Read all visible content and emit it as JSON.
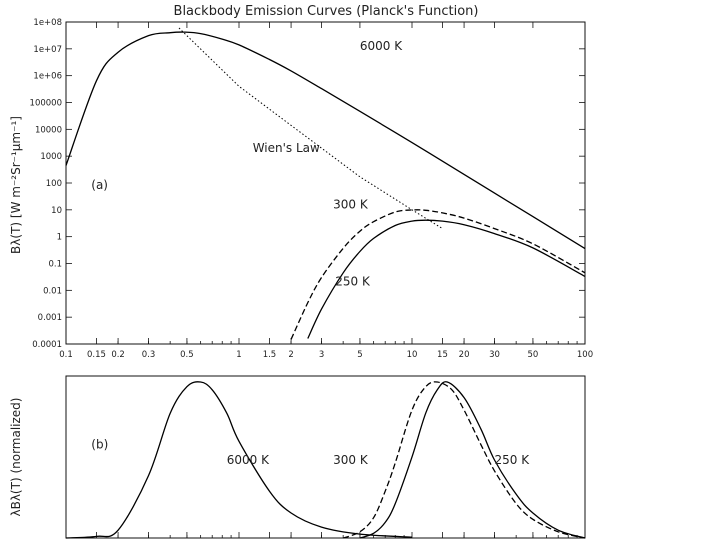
{
  "chart_data": [
    {
      "type": "line",
      "panel_label": "(a)",
      "title": "Blackbody Emission Curves (Planck's Function)",
      "ylabel": "Bλ(T) [W m⁻²Sr⁻¹µm⁻¹]",
      "xlabel": "",
      "xscale": "log",
      "yscale": "log",
      "xlim": [
        0.1,
        100
      ],
      "ylim": [
        0.0001,
        100000000
      ],
      "x_ticks": [
        "0.1",
        "0.15",
        "0.2",
        "0.3",
        "0.5",
        "1",
        "1.5",
        "2",
        "3",
        "5",
        "10",
        "15",
        "20",
        "30",
        "50",
        "100"
      ],
      "x_tick_values": [
        0.1,
        0.15,
        0.2,
        0.3,
        0.5,
        1,
        1.5,
        2,
        3,
        5,
        10,
        15,
        20,
        30,
        50,
        100
      ],
      "y_ticks": [
        "0.0001",
        "0.001",
        "0.01",
        "0.1",
        "1",
        "10",
        "100",
        "1000",
        "10000",
        "100000",
        "1e+06",
        "1e+07",
        "1e+08"
      ],
      "y_tick_values": [
        0.0001,
        0.001,
        0.01,
        0.1,
        1,
        10,
        100,
        1000,
        10000,
        100000,
        1000000,
        10000000,
        100000000
      ],
      "grid": false,
      "series": [
        {
          "name": "6000 K",
          "style": "solid",
          "x": [
            0.1,
            0.15,
            0.2,
            0.3,
            0.4,
            0.48,
            0.6,
            0.8,
            1,
            1.5,
            2,
            3,
            5,
            10,
            20,
            30,
            50,
            100
          ],
          "y": [
            450,
            650000,
            7500000,
            31000000,
            40000000,
            42000000,
            37000000,
            23000000,
            14000000,
            4000000,
            1500000,
            330000,
            47000,
            3200,
            210,
            42,
            5.6,
            0.36
          ]
        },
        {
          "name": "300 K",
          "style": "dashed",
          "x": [
            2,
            2.5,
            3,
            4,
            5,
            6,
            8,
            10,
            12,
            15,
            20,
            30,
            50,
            100
          ],
          "y": [
            0.00015,
            0.0035,
            0.03,
            0.37,
            1.6,
            3.6,
            8.3,
            9.9,
            9.6,
            7.7,
            4.9,
            2.0,
            0.54,
            0.045
          ]
        },
        {
          "name": "250 K",
          "style": "solid",
          "x": [
            2.5,
            3,
            4,
            5,
            6,
            8,
            10,
            12,
            15,
            20,
            30,
            50,
            100
          ],
          "y": [
            0.00016,
            0.002,
            0.045,
            0.28,
            0.86,
            2.6,
            3.8,
            4.1,
            3.8,
            2.8,
            1.3,
            0.38,
            0.033
          ]
        },
        {
          "name": "Wien's Law",
          "style": "dotted",
          "x": [
            0.45,
            1,
            2,
            5,
            10,
            15
          ],
          "y": [
            60000000,
            400000,
            14000,
            170,
            10,
            2
          ]
        }
      ],
      "annotations": [
        {
          "text": "6000 K",
          "x": 5.0,
          "y": 9000000
        },
        {
          "text": "Wien's Law",
          "x": 1.2,
          "y": 1400
        },
        {
          "text": "300 K",
          "x": 3.5,
          "y": 11
        },
        {
          "text": "250 K",
          "x": 3.6,
          "y": 0.015
        },
        {
          "text": "(a)",
          "x": 0.14,
          "y": 60
        }
      ]
    },
    {
      "type": "line",
      "panel_label": "(b)",
      "ylabel": "λBλ(T) (normalized)",
      "xscale": "log",
      "xlim": [
        0.1,
        100
      ],
      "ylim": [
        0,
        1
      ],
      "series": [
        {
          "name": "6000 K",
          "style": "solid",
          "x": [
            0.1,
            0.15,
            0.2,
            0.3,
            0.4,
            0.5,
            0.6,
            0.7,
            0.85,
            1,
            1.5,
            2,
            3,
            5,
            10
          ],
          "y": [
            0.0,
            0.01,
            0.05,
            0.4,
            0.8,
            0.97,
            1.0,
            0.95,
            0.8,
            0.62,
            0.3,
            0.16,
            0.07,
            0.025,
            0.005
          ]
        },
        {
          "name": "300 K",
          "style": "dashed",
          "x": [
            4,
            5,
            6,
            7,
            8,
            10,
            12,
            14,
            17,
            20,
            25,
            30,
            40,
            50,
            70,
            100
          ],
          "y": [
            0.0,
            0.04,
            0.13,
            0.3,
            0.48,
            0.82,
            0.97,
            1.0,
            0.95,
            0.82,
            0.6,
            0.43,
            0.22,
            0.12,
            0.04,
            0.0
          ]
        },
        {
          "name": "250 K",
          "style": "solid",
          "x": [
            5,
            6,
            7,
            8,
            10,
            12,
            14,
            16,
            20,
            25,
            30,
            40,
            50,
            70,
            100
          ],
          "y": [
            0.0,
            0.03,
            0.1,
            0.22,
            0.52,
            0.8,
            0.95,
            1.0,
            0.9,
            0.7,
            0.5,
            0.28,
            0.16,
            0.05,
            0.0
          ]
        }
      ],
      "annotations": [
        {
          "text": "(b)",
          "x": 0.14,
          "y": 0.6
        },
        {
          "text": "6000 K",
          "x": 0.85,
          "y": 0.5
        },
        {
          "text": "300 K",
          "x": 3.5,
          "y": 0.5
        },
        {
          "text": "250 K",
          "x": 30,
          "y": 0.5
        }
      ]
    }
  ]
}
